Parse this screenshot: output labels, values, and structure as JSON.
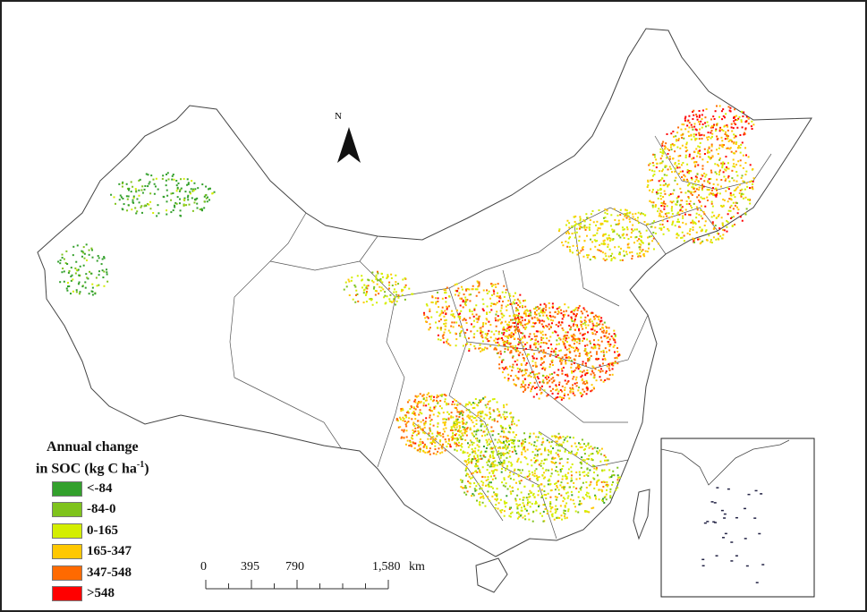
{
  "north_label": "N",
  "legend": {
    "title_line1": "Annual change",
    "title_line2": "in SOC (kg C ha",
    "title_sup": "-1",
    "title_end": ")",
    "items": [
      {
        "label": "<-84",
        "color": "#33a02c"
      },
      {
        "label": "-84-0",
        "color": "#7fc31c"
      },
      {
        "label": "0-165",
        "color": "#d4ee00"
      },
      {
        "label": "165-347",
        "color": "#ffc800"
      },
      {
        "label": "347-548",
        "color": "#ff6a00"
      },
      {
        "label": ">548",
        "color": "#ff0000"
      }
    ]
  },
  "scale_bar": {
    "ticks": [
      "0",
      "395",
      "790",
      "1,580"
    ],
    "unit": "km"
  }
}
